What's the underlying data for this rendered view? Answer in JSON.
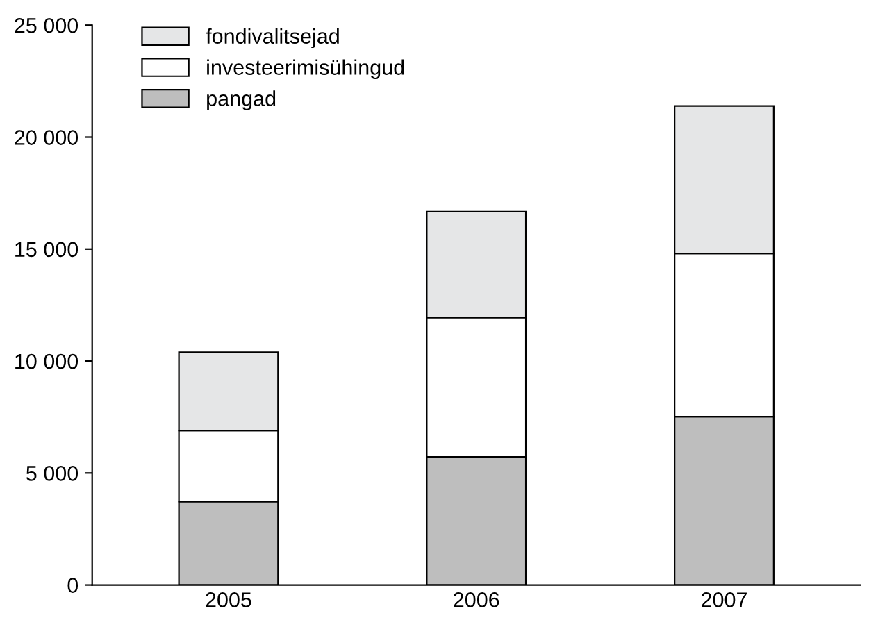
{
  "chart_data": {
    "type": "bar",
    "stacked": true,
    "categories": [
      "2005",
      "2006",
      "2007"
    ],
    "series": [
      {
        "name": "pangad",
        "color": "#bebebe",
        "values": [
          3730,
          5720,
          7520
        ]
      },
      {
        "name": "investeerimisühingud",
        "color": "#ffffff",
        "values": [
          3170,
          6220,
          7280
        ]
      },
      {
        "name": "fondivalitsejad",
        "color": "#e5e6e7",
        "values": [
          3490,
          4730,
          6590
        ]
      }
    ],
    "ylim": [
      0,
      25000
    ],
    "yticks": [
      0,
      {
        "value": 5000,
        "label": "5 000"
      },
      {
        "value": 10000,
        "label": "10 000"
      },
      {
        "value": 15000,
        "label": "15 000"
      },
      {
        "value": 20000,
        "label": "20 000"
      },
      {
        "value": 25000,
        "label": "25 000"
      }
    ],
    "grid": false,
    "legend": "top left"
  }
}
